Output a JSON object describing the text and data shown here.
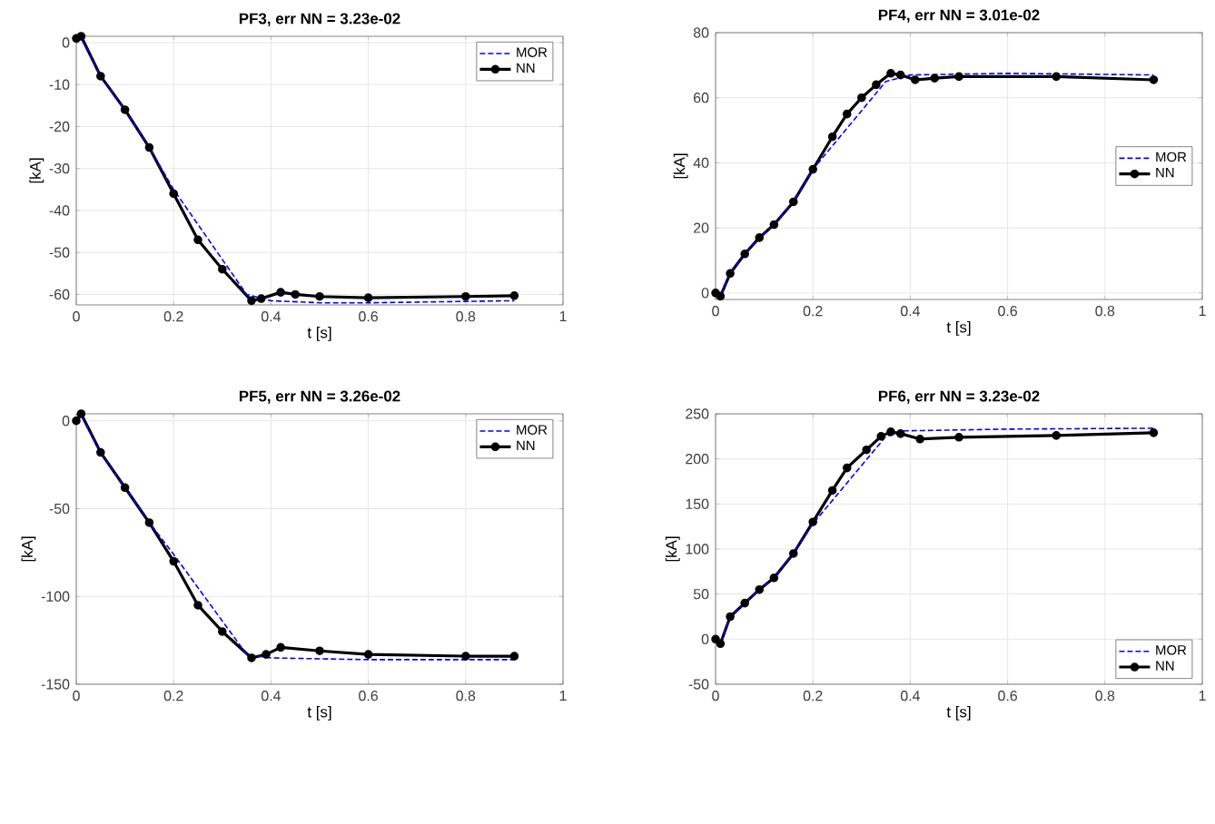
{
  "chart_data": [
    {
      "type": "line",
      "title": "PF3, err NN = 3.23e-02",
      "xlabel": "t [s]",
      "ylabel": "[kA]",
      "xlim": [
        0,
        1
      ],
      "ylim": [
        -62.5,
        1.5
      ],
      "xticks": [
        0,
        0.2,
        0.4,
        0.6,
        0.8,
        1
      ],
      "yticks": [
        -60,
        -50,
        -40,
        -30,
        -20,
        -10,
        0
      ],
      "grid": true,
      "legend": "top right",
      "series": [
        {
          "name": "MOR",
          "color": "#0000ff",
          "line_style": "dashed",
          "marker": "none",
          "x": [
            0,
            0.01,
            0.05,
            0.1,
            0.15,
            0.2,
            0.35,
            0.4,
            0.5,
            0.6,
            0.9
          ],
          "values": [
            0,
            1,
            -8,
            -16,
            -25,
            -35,
            -60,
            -61.5,
            -62,
            -62,
            -61.5
          ]
        },
        {
          "name": "NN",
          "color": "#000000",
          "line_style": "solid",
          "marker": "circle",
          "x": [
            0,
            0.01,
            0.05,
            0.1,
            0.15,
            0.2,
            0.25,
            0.3,
            0.36,
            0.38,
            0.42,
            0.45,
            0.5,
            0.6,
            0.8,
            0.9
          ],
          "values": [
            1,
            1.5,
            -8,
            -16,
            -25,
            -36,
            -47,
            -54,
            -61.5,
            -61,
            -59.5,
            -60,
            -60.5,
            -60.8,
            -60.5,
            -60.3
          ]
        }
      ]
    },
    {
      "type": "line",
      "title": "PF4, err NN = 3.01e-02",
      "xlabel": "t [s]",
      "ylabel": "[kA]",
      "xlim": [
        0,
        1
      ],
      "ylim": [
        -2,
        80
      ],
      "xticks": [
        0,
        0.2,
        0.4,
        0.6,
        0.8,
        1
      ],
      "yticks": [
        0,
        20,
        40,
        60,
        80
      ],
      "grid": true,
      "legend": "right",
      "series": [
        {
          "name": "MOR",
          "color": "#0000ff",
          "line_style": "dashed",
          "marker": "none",
          "x": [
            0,
            0.01,
            0.03,
            0.06,
            0.09,
            0.12,
            0.16,
            0.2,
            0.35,
            0.4,
            0.6,
            0.9
          ],
          "values": [
            0,
            -1,
            6,
            12,
            17,
            21,
            28,
            38,
            65,
            67,
            67.5,
            67
          ]
        },
        {
          "name": "NN",
          "color": "#000000",
          "line_style": "solid",
          "marker": "circle",
          "x": [
            0,
            0.01,
            0.03,
            0.06,
            0.09,
            0.12,
            0.16,
            0.2,
            0.24,
            0.27,
            0.3,
            0.33,
            0.36,
            0.38,
            0.41,
            0.45,
            0.5,
            0.7,
            0.9
          ],
          "values": [
            0,
            -1,
            6,
            12,
            17,
            21,
            28,
            38,
            48,
            55,
            60,
            64,
            67.5,
            67,
            65.5,
            66,
            66.5,
            66.5,
            65.5
          ]
        }
      ]
    },
    {
      "type": "line",
      "title": "PF5, err NN = 3.26e-02",
      "xlabel": "t [s]",
      "ylabel": "[kA]",
      "xlim": [
        0,
        1
      ],
      "ylim": [
        -150,
        4
      ],
      "xticks": [
        0,
        0.2,
        0.4,
        0.6,
        0.8,
        1
      ],
      "yticks": [
        -150,
        -100,
        -50,
        0
      ],
      "grid": true,
      "legend": "top right",
      "series": [
        {
          "name": "MOR",
          "color": "#0000ff",
          "line_style": "dashed",
          "marker": "none",
          "x": [
            0,
            0.01,
            0.05,
            0.1,
            0.15,
            0.2,
            0.35,
            0.4,
            0.6,
            0.9
          ],
          "values": [
            0,
            3,
            -18,
            -38,
            -58,
            -76,
            -133,
            -135,
            -136,
            -136
          ]
        },
        {
          "name": "NN",
          "color": "#000000",
          "line_style": "solid",
          "marker": "circle",
          "x": [
            0,
            0.01,
            0.05,
            0.1,
            0.15,
            0.2,
            0.25,
            0.3,
            0.36,
            0.39,
            0.42,
            0.5,
            0.6,
            0.8,
            0.9
          ],
          "values": [
            0,
            4,
            -18,
            -38,
            -58,
            -80,
            -105,
            -120,
            -135,
            -133,
            -129,
            -131,
            -133,
            -134,
            -134
          ]
        }
      ]
    },
    {
      "type": "line",
      "title": "PF6, err NN = 3.23e-02",
      "xlabel": "t [s]",
      "ylabel": "[kA]",
      "xlim": [
        0,
        1
      ],
      "ylim": [
        -50,
        250
      ],
      "xticks": [
        0,
        0.2,
        0.4,
        0.6,
        0.8,
        1
      ],
      "yticks": [
        -50,
        0,
        50,
        100,
        150,
        200,
        250
      ],
      "grid": true,
      "legend": "bottom right",
      "series": [
        {
          "name": "MOR",
          "color": "#0000ff",
          "line_style": "dashed",
          "marker": "none",
          "x": [
            0,
            0.01,
            0.03,
            0.06,
            0.09,
            0.12,
            0.16,
            0.2,
            0.35,
            0.38,
            0.6,
            0.9
          ],
          "values": [
            0,
            -5,
            25,
            40,
            55,
            68,
            95,
            128,
            225,
            231,
            233,
            234
          ]
        },
        {
          "name": "NN",
          "color": "#000000",
          "line_style": "solid",
          "marker": "circle",
          "x": [
            0,
            0.01,
            0.03,
            0.06,
            0.09,
            0.12,
            0.16,
            0.2,
            0.24,
            0.27,
            0.31,
            0.34,
            0.36,
            0.38,
            0.42,
            0.5,
            0.7,
            0.9
          ],
          "values": [
            0,
            -5,
            25,
            40,
            55,
            68,
            95,
            130,
            165,
            190,
            210,
            225,
            230,
            228,
            222,
            224,
            226,
            229
          ]
        }
      ]
    }
  ]
}
